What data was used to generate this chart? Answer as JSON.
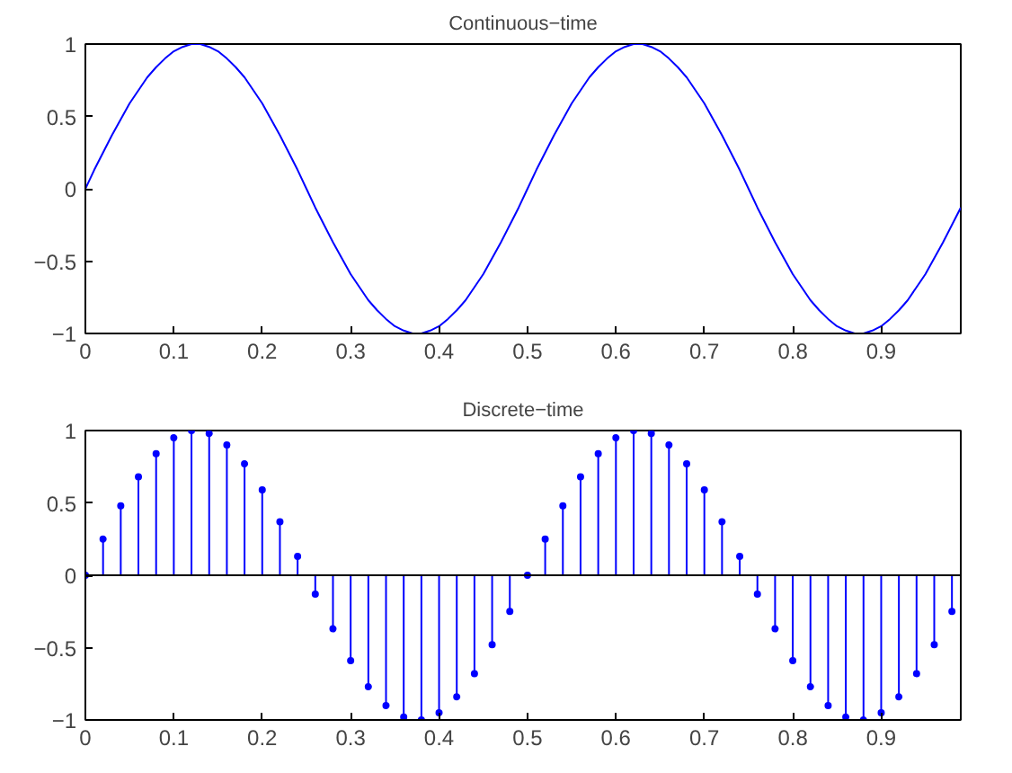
{
  "chart_data": [
    {
      "type": "line",
      "title": "Continuous−time",
      "xlim": [
        0,
        0.99
      ],
      "ylim": [
        -1,
        1
      ],
      "grid": false,
      "marker": "none",
      "line_style": "solid",
      "xticks": [
        0,
        0.1,
        0.2,
        0.3,
        0.4,
        0.5,
        0.6,
        0.7,
        0.8,
        0.9
      ],
      "yticks": [
        -1,
        -0.5,
        0,
        0.5,
        1
      ],
      "x": [
        0,
        0.01,
        0.02,
        0.03,
        0.04,
        0.05,
        0.06,
        0.07,
        0.08,
        0.09,
        0.1,
        0.11,
        0.12,
        0.13,
        0.14,
        0.15,
        0.16,
        0.17,
        0.18,
        0.19,
        0.2,
        0.21,
        0.22,
        0.23,
        0.24,
        0.25,
        0.26,
        0.27,
        0.28,
        0.29,
        0.3,
        0.31,
        0.32,
        0.33,
        0.34,
        0.35,
        0.36,
        0.37,
        0.38,
        0.39,
        0.4,
        0.41,
        0.42,
        0.43,
        0.44,
        0.45,
        0.46,
        0.47,
        0.48,
        0.49,
        0.5,
        0.51,
        0.52,
        0.53,
        0.54,
        0.55,
        0.56,
        0.57,
        0.58,
        0.59,
        0.6,
        0.61,
        0.62,
        0.63,
        0.64,
        0.65,
        0.66,
        0.67,
        0.68,
        0.69,
        0.7,
        0.71,
        0.72,
        0.73,
        0.74,
        0.75,
        0.76,
        0.77,
        0.78,
        0.79,
        0.8,
        0.81,
        0.82,
        0.83,
        0.84,
        0.85,
        0.86,
        0.87,
        0.88,
        0.89,
        0.9,
        0.91,
        0.92,
        0.93,
        0.94,
        0.95,
        0.96,
        0.97,
        0.98,
        0.99
      ],
      "series": [
        {
          "color": "#0000ff",
          "values": [
            0,
            0.13,
            0.25,
            0.37,
            0.48,
            0.59,
            0.68,
            0.77,
            0.84,
            0.9,
            0.95,
            0.98,
            1,
            1,
            0.98,
            0.95,
            0.9,
            0.84,
            0.77,
            0.68,
            0.59,
            0.48,
            0.37,
            0.25,
            0.13,
            0,
            -0.13,
            -0.25,
            -0.37,
            -0.48,
            -0.59,
            -0.68,
            -0.77,
            -0.84,
            -0.9,
            -0.95,
            -0.98,
            -1,
            -1,
            -0.98,
            -0.95,
            -0.9,
            -0.84,
            -0.77,
            -0.68,
            -0.59,
            -0.48,
            -0.37,
            -0.25,
            -0.13,
            0,
            0.13,
            0.25,
            0.37,
            0.48,
            0.59,
            0.68,
            0.77,
            0.84,
            0.9,
            0.95,
            0.98,
            1,
            1,
            0.98,
            0.95,
            0.9,
            0.84,
            0.77,
            0.68,
            0.59,
            0.48,
            0.37,
            0.25,
            0.13,
            0,
            -0.13,
            -0.25,
            -0.37,
            -0.48,
            -0.59,
            -0.68,
            -0.77,
            -0.84,
            -0.9,
            -0.95,
            -0.98,
            -1,
            -1,
            -0.98,
            -0.95,
            -0.9,
            -0.84,
            -0.77,
            -0.68,
            -0.59,
            -0.48,
            -0.37,
            -0.25,
            -0.13
          ]
        }
      ]
    },
    {
      "type": "lollipop",
      "title": "Discrete−time",
      "xlim": [
        0,
        0.99
      ],
      "ylim": [
        -1,
        1
      ],
      "grid": false,
      "marker": "circle",
      "xticks": [
        0,
        0.1,
        0.2,
        0.3,
        0.4,
        0.5,
        0.6,
        0.7,
        0.8,
        0.9
      ],
      "yticks": [
        -1,
        -0.5,
        0,
        0.5,
        1
      ],
      "ref_lines": [
        {
          "axis": "y",
          "value": 0,
          "color": "#000000"
        }
      ],
      "x": [
        0,
        0.02,
        0.04,
        0.06,
        0.08,
        0.1,
        0.12,
        0.14,
        0.16,
        0.18,
        0.2,
        0.22,
        0.24,
        0.26,
        0.28,
        0.3,
        0.32,
        0.34,
        0.36,
        0.38,
        0.4,
        0.42,
        0.44,
        0.46,
        0.48,
        0.5,
        0.52,
        0.54,
        0.56,
        0.58,
        0.6,
        0.62,
        0.64,
        0.66,
        0.68,
        0.7,
        0.72,
        0.74,
        0.76,
        0.78,
        0.8,
        0.82,
        0.84,
        0.86,
        0.88,
        0.9,
        0.92,
        0.94,
        0.96,
        0.98
      ],
      "series": [
        {
          "color": "#0000ff",
          "values": [
            0,
            0.25,
            0.48,
            0.68,
            0.84,
            0.95,
            1,
            0.98,
            0.9,
            0.77,
            0.59,
            0.37,
            0.13,
            -0.13,
            -0.37,
            -0.59,
            -0.77,
            -0.9,
            -0.98,
            -1,
            -0.95,
            -0.84,
            -0.68,
            -0.48,
            -0.25,
            0,
            0.25,
            0.48,
            0.68,
            0.84,
            0.95,
            1,
            0.98,
            0.9,
            0.77,
            0.59,
            0.37,
            0.13,
            -0.13,
            -0.37,
            -0.59,
            -0.77,
            -0.9,
            -0.98,
            -1,
            -0.95,
            -0.84,
            -0.68,
            -0.48,
            -0.25
          ]
        }
      ]
    }
  ]
}
